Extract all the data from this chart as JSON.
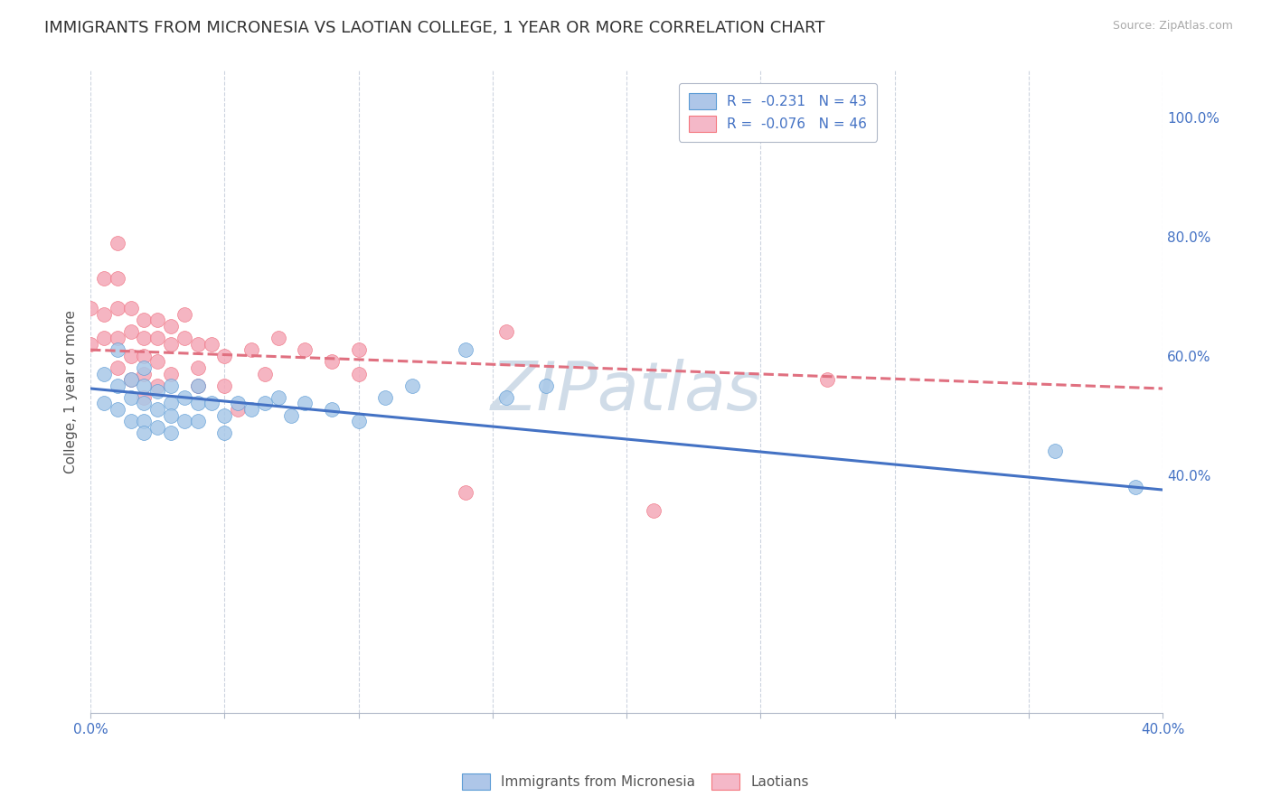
{
  "title": "IMMIGRANTS FROM MICRONESIA VS LAOTIAN COLLEGE, 1 YEAR OR MORE CORRELATION CHART",
  "source_text": "Source: ZipAtlas.com",
  "ylabel": "College, 1 year or more",
  "xlim": [
    0.0,
    0.4
  ],
  "ylim": [
    0.0,
    1.08
  ],
  "xticks": [
    0.0,
    0.05,
    0.1,
    0.15,
    0.2,
    0.25,
    0.3,
    0.35,
    0.4
  ],
  "yticks_right": [
    0.4,
    0.6,
    0.8,
    1.0
  ],
  "ytickslabels_right": [
    "40.0%",
    "60.0%",
    "80.0%",
    "100.0%"
  ],
  "legend_labels": [
    "R =  -0.231   N = 43",
    "R =  -0.076   N = 46"
  ],
  "legend_colors_face": [
    "#aec6e8",
    "#f4b8c8"
  ],
  "legend_colors_edge": [
    "#5b9bd5",
    "#f4777f"
  ],
  "blue_scatter_color": "#a8c8e8",
  "blue_edge_color": "#5b9bd5",
  "pink_scatter_color": "#f4a8b8",
  "pink_edge_color": "#f07080",
  "trend_blue_color": "#4472c4",
  "trend_pink_color": "#e07080",
  "watermark": "ZIPatlas",
  "watermark_color": "#d0dce8",
  "blue_scatter_x": [
    0.005,
    0.01,
    0.005,
    0.01,
    0.01,
    0.015,
    0.015,
    0.015,
    0.02,
    0.02,
    0.02,
    0.02,
    0.02,
    0.025,
    0.025,
    0.025,
    0.03,
    0.03,
    0.03,
    0.03,
    0.035,
    0.035,
    0.04,
    0.04,
    0.04,
    0.045,
    0.05,
    0.05,
    0.055,
    0.06,
    0.065,
    0.07,
    0.075,
    0.08,
    0.09,
    0.1,
    0.11,
    0.12,
    0.14,
    0.155,
    0.17,
    0.36,
    0.39
  ],
  "blue_scatter_y": [
    0.57,
    0.61,
    0.52,
    0.55,
    0.51,
    0.56,
    0.53,
    0.49,
    0.58,
    0.55,
    0.52,
    0.49,
    0.47,
    0.54,
    0.51,
    0.48,
    0.55,
    0.52,
    0.5,
    0.47,
    0.53,
    0.49,
    0.55,
    0.52,
    0.49,
    0.52,
    0.5,
    0.47,
    0.52,
    0.51,
    0.52,
    0.53,
    0.5,
    0.52,
    0.51,
    0.49,
    0.53,
    0.55,
    0.61,
    0.53,
    0.55,
    0.44,
    0.38
  ],
  "pink_scatter_x": [
    0.0,
    0.0,
    0.005,
    0.005,
    0.005,
    0.01,
    0.01,
    0.01,
    0.01,
    0.01,
    0.015,
    0.015,
    0.015,
    0.015,
    0.02,
    0.02,
    0.02,
    0.02,
    0.02,
    0.025,
    0.025,
    0.025,
    0.025,
    0.03,
    0.03,
    0.03,
    0.035,
    0.035,
    0.04,
    0.04,
    0.04,
    0.045,
    0.05,
    0.05,
    0.055,
    0.06,
    0.065,
    0.07,
    0.08,
    0.09,
    0.1,
    0.1,
    0.14,
    0.155,
    0.21,
    0.275
  ],
  "pink_scatter_y": [
    0.68,
    0.62,
    0.73,
    0.67,
    0.63,
    0.79,
    0.73,
    0.68,
    0.63,
    0.58,
    0.68,
    0.64,
    0.6,
    0.56,
    0.66,
    0.63,
    0.6,
    0.57,
    0.53,
    0.66,
    0.63,
    0.59,
    0.55,
    0.65,
    0.62,
    0.57,
    0.67,
    0.63,
    0.62,
    0.58,
    0.55,
    0.62,
    0.6,
    0.55,
    0.51,
    0.61,
    0.57,
    0.63,
    0.61,
    0.59,
    0.61,
    0.57,
    0.37,
    0.64,
    0.34,
    0.56
  ],
  "blue_trend_x": [
    0.0,
    0.4
  ],
  "blue_trend_y": [
    0.545,
    0.375
  ],
  "pink_trend_x": [
    0.0,
    0.4
  ],
  "pink_trend_y": [
    0.61,
    0.545
  ],
  "background_color": "#ffffff",
  "grid_color": "#c8d0dc",
  "title_fontsize": 13,
  "axis_label_fontsize": 11
}
